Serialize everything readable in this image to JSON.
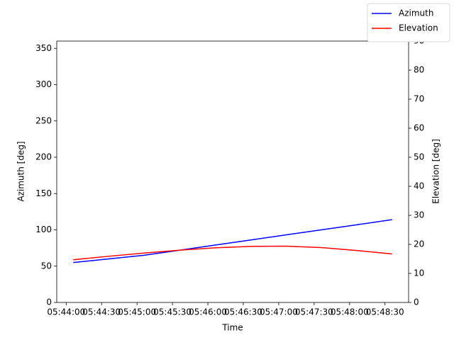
{
  "chart_data": {
    "type": "line",
    "x_label": "Time",
    "y_label": "Azimuth [deg]",
    "y2_label": "Elevation [deg]",
    "x": [
      "05:44:06",
      "05:44:36",
      "05:45:06",
      "05:45:36",
      "05:46:06",
      "05:46:36",
      "05:47:06",
      "05:47:36",
      "05:48:06",
      "05:48:36"
    ],
    "xlim": [
      "05:43:52",
      "05:48:50"
    ],
    "xticks": [
      "05:44:00",
      "05:44:30",
      "05:45:00",
      "05:45:30",
      "05:46:00",
      "05:46:30",
      "05:47:00",
      "05:47:30",
      "05:48:00",
      "05:48:30"
    ],
    "ylim": [
      0,
      360
    ],
    "yticks": [
      0,
      50,
      100,
      150,
      200,
      250,
      300,
      350
    ],
    "y2lim": [
      0,
      90
    ],
    "y2ticks": [
      0,
      10,
      20,
      30,
      40,
      50,
      60,
      70,
      80,
      90
    ],
    "legend": "upper right",
    "series": [
      {
        "name": "Azimuth",
        "color": "#0000ff",
        "values": [
          55,
          60,
          65,
          72,
          79,
          86,
          93,
          100,
          107,
          114
        ]
      },
      {
        "name": "Elevation",
        "color": "#ff0000",
        "axis": "y2",
        "values": [
          14.7,
          15.9,
          17.0,
          18.0,
          18.8,
          19.3,
          19.4,
          18.9,
          17.9,
          16.7
        ]
      }
    ]
  }
}
